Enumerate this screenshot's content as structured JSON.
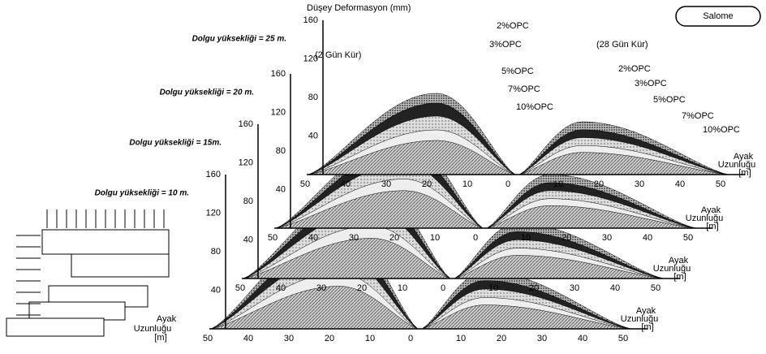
{
  "title": "Düşey Deformasyon (mm)",
  "button": "Salome",
  "cure_left": "(2 Gün Kür)",
  "cure_right": "(28 Gün Kür)",
  "series_left": [
    "2%OPC",
    "3%OPC",
    "5%OPC",
    "7%OPC",
    "10%OPC"
  ],
  "series_right": [
    "2%OPC",
    "3%OPC",
    "5%OPC",
    "7%OPC",
    "10%OPC"
  ],
  "panels": [
    {
      "label": "Dolgu yüksekliği = 25 m.",
      "yticks": [
        "160",
        "120",
        "80",
        "40"
      ],
      "xticks_left": [
        "50",
        "40",
        "30",
        "20",
        "10",
        "0"
      ],
      "xticks_right": [
        "10",
        "20",
        "30",
        "40",
        "50"
      ],
      "axis_label_1": "Ayak",
      "axis_label_2": "Uzunluğu",
      "axis_label_3": "[m]"
    },
    {
      "label": "Dolgu yüksekliği = 20 m.",
      "yticks": [
        "160",
        "120",
        "80",
        "40"
      ],
      "xticks_left": [
        "50",
        "40",
        "30",
        "20",
        "10",
        "0"
      ],
      "xticks_right": [
        "10",
        "20",
        "30",
        "40",
        "50"
      ],
      "axis_label_1": "Ayak",
      "axis_label_2": "Uzunluğu",
      "axis_label_3": "[m]"
    },
    {
      "label": "Dolgu yüksekliği = 15m.",
      "yticks": [
        "160",
        "120",
        "80",
        "40"
      ],
      "xticks_left": [
        "50",
        "40",
        "30",
        "20",
        "10",
        "0"
      ],
      "xticks_right": [
        "10",
        "20",
        "30",
        "40",
        "50"
      ],
      "axis_label_1": "Ayak",
      "axis_label_2": "Uzunluğu",
      "axis_label_3": "[m]"
    },
    {
      "label": "Dolgu yüksekliği = 10 m.",
      "yticks": [
        "160",
        "120",
        "80",
        "40"
      ],
      "xticks_left": [
        "50",
        "40",
        "30",
        "20",
        "10",
        "0"
      ],
      "xticks_right": [
        "10",
        "20",
        "30",
        "40",
        "50"
      ],
      "axis_label_1": "Ayak",
      "axis_label_2": "Uzunluğu",
      "axis_label_3": "[m]"
    }
  ],
  "diagram_label_1": "Ayak",
  "diagram_label_2": "Uzunluğu",
  "diagram_label_3": "[m]"
}
